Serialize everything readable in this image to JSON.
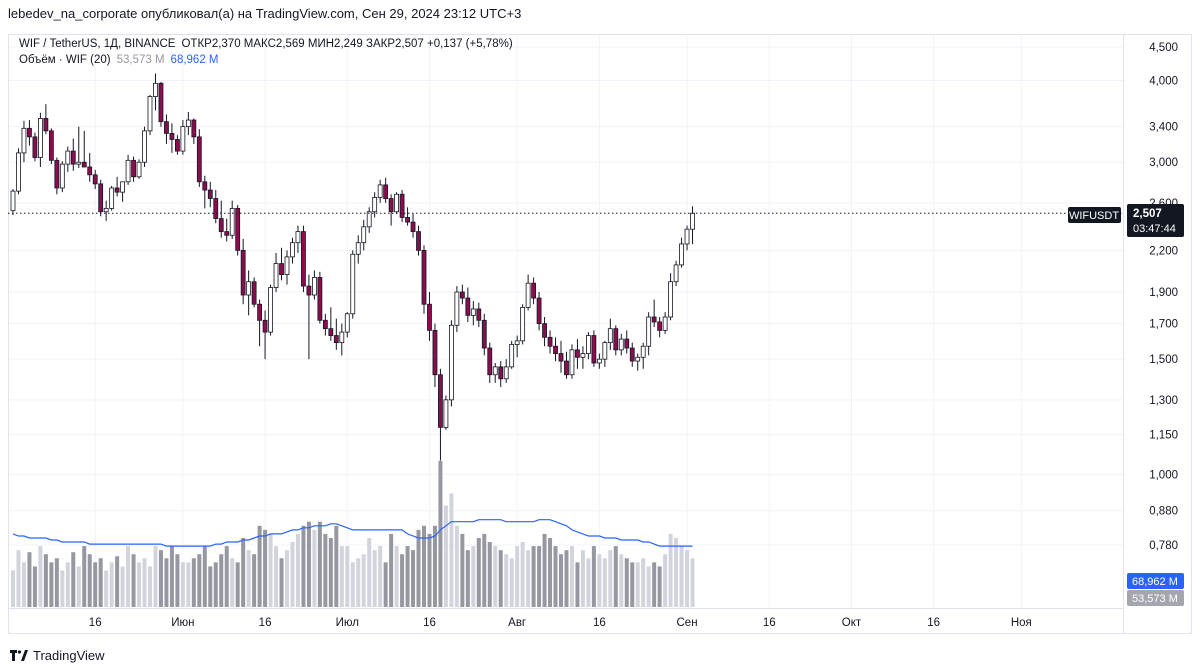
{
  "header": {
    "published_line": "lebedev_na_corporate опубликовал(а) на TradingView.com, Сен 29, 2024 23:12 UTC+3"
  },
  "legend": {
    "symbol": "WIF / TetherUS, 1Д, BINANCE",
    "ohlc": "ОТКР2,370  МАКС2,569  МИН2,249  ЗАКР2,507  +0,137 (+5,78%)",
    "volume_label": "Объём · WIF (20)",
    "volume_value": "53,573 M",
    "volume_ma_value": "68,962 M"
  },
  "price_tag": {
    "symbol": "WIFUSDT",
    "price": "2,507",
    "countdown": "03:47:44"
  },
  "volume_tags": {
    "ma": "68,962 M",
    "volume": "53,573 M"
  },
  "footer": {
    "brand": "TradingView"
  },
  "colors": {
    "up": "#ffffff",
    "down": "#880e4f",
    "wick": "#131722",
    "volume_up": "#d1d4dc",
    "volume_down": "#9598a1",
    "volume_ma": "#2962ff",
    "grid": "#f0f3fa"
  },
  "chart_data": {
    "type": "candlestick",
    "scale": "log",
    "ylim": [
      0.7,
      4.8
    ],
    "y_ticks": [
      "4,500",
      "4,000",
      "3,400",
      "3,000",
      "2,600",
      "2,200",
      "1,900",
      "1,700",
      "1,500",
      "1,300",
      "1,150",
      "1,000",
      "0,880",
      "0,780"
    ],
    "y_tick_values": [
      4.5,
      4.0,
      3.4,
      3.0,
      2.6,
      2.2,
      1.9,
      1.7,
      1.5,
      1.3,
      1.15,
      1.0,
      0.88,
      0.78
    ],
    "x_ticks": [
      "16",
      "Июн",
      "16",
      "Июл",
      "16",
      "Авг",
      "16",
      "Сен",
      "16",
      "Окт",
      "16",
      "Ноя"
    ],
    "x_tick_days": [
      15,
      31,
      46,
      61,
      76,
      92,
      107,
      123,
      138,
      153,
      168,
      184
    ],
    "last_price": 2.507,
    "candles": [
      [
        2.53,
        2.73,
        2.49,
        2.71
      ],
      [
        2.71,
        3.15,
        2.68,
        3.1
      ],
      [
        3.1,
        3.47,
        3.0,
        3.38
      ],
      [
        3.38,
        3.48,
        3.18,
        3.28
      ],
      [
        3.28,
        3.33,
        3.01,
        3.05
      ],
      [
        3.05,
        3.57,
        2.95,
        3.5
      ],
      [
        3.5,
        3.68,
        3.31,
        3.35
      ],
      [
        3.35,
        3.38,
        2.98,
        3.02
      ],
      [
        3.02,
        3.05,
        2.68,
        2.74
      ],
      [
        2.74,
        3.01,
        2.7,
        2.98
      ],
      [
        2.98,
        3.17,
        2.9,
        3.12
      ],
      [
        3.12,
        3.26,
        2.91,
        2.98
      ],
      [
        2.98,
        3.4,
        2.94,
        3.0
      ],
      [
        3.0,
        3.35,
        2.95,
        2.95
      ],
      [
        2.95,
        3.1,
        2.8,
        2.87
      ],
      [
        2.87,
        2.92,
        2.73,
        2.78
      ],
      [
        2.78,
        2.82,
        2.48,
        2.52
      ],
      [
        2.52,
        2.62,
        2.44,
        2.55
      ],
      [
        2.55,
        2.76,
        2.53,
        2.74
      ],
      [
        2.74,
        2.85,
        2.66,
        2.7
      ],
      [
        2.7,
        2.8,
        2.61,
        2.8
      ],
      [
        2.8,
        3.08,
        2.77,
        3.02
      ],
      [
        3.02,
        3.06,
        2.8,
        2.85
      ],
      [
        2.85,
        3.03,
        2.83,
        3.0
      ],
      [
        3.0,
        3.4,
        2.95,
        3.35
      ],
      [
        3.35,
        3.8,
        3.3,
        3.78
      ],
      [
        3.78,
        4.1,
        3.6,
        3.96
      ],
      [
        3.96,
        3.98,
        3.4,
        3.46
      ],
      [
        3.46,
        3.55,
        3.2,
        3.32
      ],
      [
        3.32,
        3.44,
        3.1,
        3.25
      ],
      [
        3.25,
        3.3,
        3.08,
        3.12
      ],
      [
        3.12,
        3.48,
        3.08,
        3.4
      ],
      [
        3.4,
        3.58,
        3.3,
        3.48
      ],
      [
        3.48,
        3.5,
        3.2,
        3.28
      ],
      [
        3.28,
        3.37,
        2.75,
        2.8
      ],
      [
        2.8,
        2.86,
        2.55,
        2.72
      ],
      [
        2.72,
        2.8,
        2.56,
        2.64
      ],
      [
        2.64,
        2.72,
        2.42,
        2.46
      ],
      [
        2.46,
        2.62,
        2.3,
        2.35
      ],
      [
        2.35,
        2.46,
        2.27,
        2.32
      ],
      [
        2.32,
        2.62,
        2.29,
        2.55
      ],
      [
        2.55,
        2.58,
        2.16,
        2.2
      ],
      [
        2.2,
        2.29,
        1.82,
        1.88
      ],
      [
        1.88,
        2.05,
        1.75,
        1.97
      ],
      [
        1.97,
        2.0,
        1.8,
        1.82
      ],
      [
        1.82,
        1.85,
        1.57,
        1.72
      ],
      [
        1.72,
        1.78,
        1.5,
        1.65
      ],
      [
        1.65,
        1.95,
        1.63,
        1.93
      ],
      [
        1.93,
        2.18,
        1.9,
        2.1
      ],
      [
        2.1,
        2.22,
        1.98,
        2.02
      ],
      [
        2.02,
        2.2,
        1.95,
        2.15
      ],
      [
        2.15,
        2.3,
        2.1,
        2.26
      ],
      [
        2.26,
        2.4,
        2.18,
        2.35
      ],
      [
        2.35,
        2.4,
        1.9,
        1.94
      ],
      [
        1.94,
        2.02,
        1.5,
        1.88
      ],
      [
        1.88,
        2.05,
        1.85,
        2.0
      ],
      [
        2.0,
        2.04,
        1.7,
        1.72
      ],
      [
        1.72,
        1.76,
        1.63,
        1.67
      ],
      [
        1.67,
        1.8,
        1.6,
        1.63
      ],
      [
        1.63,
        1.73,
        1.55,
        1.59
      ],
      [
        1.59,
        1.7,
        1.52,
        1.65
      ],
      [
        1.65,
        1.77,
        1.62,
        1.76
      ],
      [
        1.76,
        2.2,
        1.73,
        2.17
      ],
      [
        2.17,
        2.32,
        2.1,
        2.26
      ],
      [
        2.26,
        2.45,
        2.2,
        2.39
      ],
      [
        2.39,
        2.56,
        2.34,
        2.52
      ],
      [
        2.52,
        2.7,
        2.47,
        2.65
      ],
      [
        2.65,
        2.82,
        2.6,
        2.77
      ],
      [
        2.77,
        2.84,
        2.6,
        2.64
      ],
      [
        2.64,
        2.68,
        2.4,
        2.52
      ],
      [
        2.52,
        2.7,
        2.5,
        2.68
      ],
      [
        2.68,
        2.72,
        2.43,
        2.47
      ],
      [
        2.47,
        2.56,
        2.4,
        2.43
      ],
      [
        2.43,
        2.5,
        2.3,
        2.35
      ],
      [
        2.35,
        2.4,
        2.16,
        2.2
      ],
      [
        2.2,
        2.24,
        1.76,
        1.82
      ],
      [
        1.82,
        1.9,
        1.6,
        1.66
      ],
      [
        1.66,
        1.7,
        1.36,
        1.42
      ],
      [
        1.42,
        1.45,
        1.05,
        1.18
      ],
      [
        1.18,
        1.32,
        1.17,
        1.3
      ],
      [
        1.3,
        1.72,
        1.27,
        1.69
      ],
      [
        1.69,
        1.94,
        1.65,
        1.9
      ],
      [
        1.9,
        1.95,
        1.82,
        1.86
      ],
      [
        1.86,
        1.93,
        1.71,
        1.75
      ],
      [
        1.75,
        1.84,
        1.69,
        1.79
      ],
      [
        1.79,
        1.83,
        1.68,
        1.72
      ],
      [
        1.72,
        1.76,
        1.52,
        1.56
      ],
      [
        1.56,
        1.59,
        1.38,
        1.42
      ],
      [
        1.42,
        1.48,
        1.38,
        1.46
      ],
      [
        1.46,
        1.49,
        1.36,
        1.4
      ],
      [
        1.4,
        1.5,
        1.38,
        1.46
      ],
      [
        1.46,
        1.6,
        1.45,
        1.58
      ],
      [
        1.58,
        1.63,
        1.51,
        1.6
      ],
      [
        1.6,
        1.82,
        1.58,
        1.8
      ],
      [
        1.8,
        2.02,
        1.78,
        1.96
      ],
      [
        1.96,
        2.0,
        1.82,
        1.86
      ],
      [
        1.86,
        1.9,
        1.66,
        1.7
      ],
      [
        1.7,
        1.74,
        1.57,
        1.62
      ],
      [
        1.62,
        1.66,
        1.53,
        1.57
      ],
      [
        1.57,
        1.62,
        1.49,
        1.53
      ],
      [
        1.53,
        1.6,
        1.43,
        1.49
      ],
      [
        1.49,
        1.54,
        1.4,
        1.42
      ],
      [
        1.42,
        1.58,
        1.4,
        1.55
      ],
      [
        1.55,
        1.61,
        1.45,
        1.51
      ],
      [
        1.51,
        1.57,
        1.45,
        1.53
      ],
      [
        1.53,
        1.65,
        1.5,
        1.63
      ],
      [
        1.63,
        1.66,
        1.46,
        1.48
      ],
      [
        1.48,
        1.53,
        1.45,
        1.5
      ],
      [
        1.5,
        1.6,
        1.46,
        1.59
      ],
      [
        1.59,
        1.73,
        1.55,
        1.67
      ],
      [
        1.67,
        1.69,
        1.52,
        1.55
      ],
      [
        1.55,
        1.64,
        1.52,
        1.61
      ],
      [
        1.61,
        1.66,
        1.53,
        1.56
      ],
      [
        1.56,
        1.59,
        1.46,
        1.49
      ],
      [
        1.49,
        1.53,
        1.44,
        1.51
      ],
      [
        1.51,
        1.59,
        1.45,
        1.57
      ],
      [
        1.57,
        1.77,
        1.52,
        1.74
      ],
      [
        1.74,
        1.85,
        1.68,
        1.71
      ],
      [
        1.71,
        1.74,
        1.62,
        1.66
      ],
      [
        1.66,
        1.77,
        1.64,
        1.74
      ],
      [
        1.74,
        2.03,
        1.72,
        1.97
      ],
      [
        1.97,
        2.12,
        1.94,
        2.09
      ],
      [
        2.09,
        2.3,
        2.07,
        2.25
      ],
      [
        2.25,
        2.4,
        2.2,
        2.37
      ],
      [
        2.37,
        2.569,
        2.249,
        2.507
      ]
    ],
    "volume": [
      18,
      28,
      22,
      27,
      20,
      30,
      26,
      22,
      24,
      18,
      22,
      27,
      20,
      30,
      26,
      22,
      24,
      18,
      22,
      25,
      20,
      30,
      26,
      22,
      24,
      20,
      30,
      28,
      24,
      30,
      26,
      22,
      22,
      24,
      26,
      30,
      20,
      22,
      26,
      30,
      24,
      22,
      34,
      28,
      26,
      40,
      38,
      36,
      30,
      24,
      28,
      32,
      36,
      40,
      42,
      38,
      42,
      36,
      34,
      40,
      30,
      30,
      22,
      24,
      26,
      34,
      28,
      30,
      22,
      36,
      30,
      26,
      30,
      28,
      38,
      40,
      36,
      40,
      72,
      50,
      56,
      40,
      36,
      28,
      30,
      34,
      36,
      32,
      30,
      28,
      26,
      24,
      30,
      32,
      28,
      30,
      30,
      36,
      34,
      30,
      26,
      28,
      30,
      22,
      28,
      24,
      30,
      26,
      24,
      28,
      30,
      26,
      24,
      22,
      22,
      24,
      20,
      22,
      20,
      26,
      36,
      34,
      30,
      28,
      24
    ],
    "volume_ma": [
      36,
      35,
      35,
      34,
      34,
      34,
      34,
      33,
      33,
      32,
      32,
      32,
      32,
      32,
      31,
      31,
      31,
      31,
      31,
      31,
      31,
      31,
      31,
      31,
      31,
      31,
      31,
      31,
      30,
      30,
      30,
      30,
      30,
      30,
      30,
      30,
      30,
      31,
      31,
      32,
      32,
      32,
      33,
      33,
      34,
      35,
      35,
      36,
      36,
      36,
      37,
      38,
      38,
      39,
      39,
      40,
      40,
      40,
      41,
      41,
      40,
      39,
      38,
      38,
      38,
      38,
      38,
      38,
      38,
      38,
      38,
      38,
      36,
      35,
      34,
      34,
      34,
      35,
      38,
      40,
      42,
      42,
      42,
      42,
      42,
      43,
      43,
      43,
      43,
      43,
      42,
      42,
      42,
      42,
      42,
      42,
      43,
      43,
      43,
      42,
      41,
      40,
      38,
      37,
      36,
      35,
      35,
      35,
      34,
      34,
      34,
      33,
      33,
      33,
      33,
      32,
      32,
      31,
      30,
      30,
      30,
      30,
      30,
      30,
      30
    ]
  }
}
